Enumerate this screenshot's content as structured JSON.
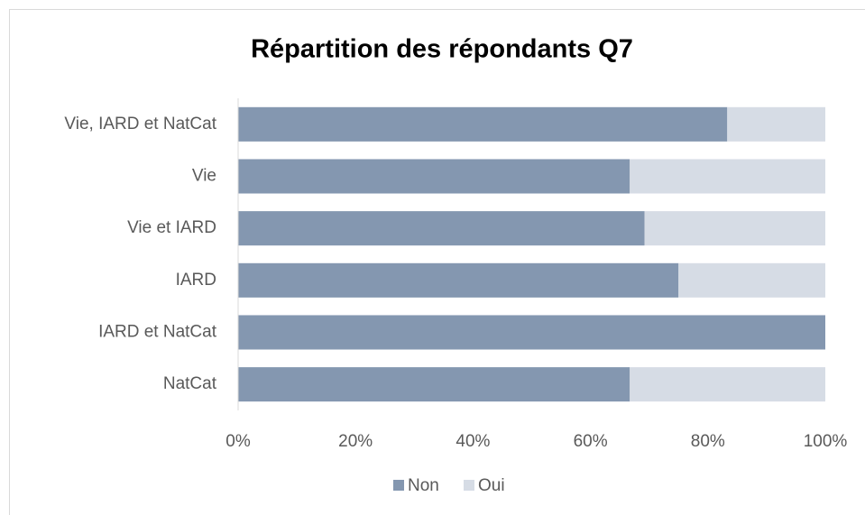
{
  "chart_data": {
    "type": "stacked_barh",
    "title": "Répartition des répondants Q7",
    "categories": [
      "Vie, IARD et NatCat",
      "Vie ",
      "Vie et IARD",
      "IARD",
      "IARD et NatCat",
      "NatCat"
    ],
    "series": [
      {
        "name": "Non",
        "color": "#8497b0",
        "values": [
          83.3,
          66.7,
          69.2,
          75,
          100,
          66.7
        ]
      },
      {
        "name": "Oui",
        "color": "#d6dce5",
        "values": [
          16.7,
          33.3,
          30.8,
          25,
          0,
          33.3
        ]
      }
    ],
    "xlim": [
      0,
      100
    ],
    "xticks": [
      {
        "value": 0,
        "label": "0%"
      },
      {
        "value": 20,
        "label": "20%"
      },
      {
        "value": 40,
        "label": "40%"
      },
      {
        "value": 60,
        "label": "60%"
      },
      {
        "value": 80,
        "label": "80%"
      },
      {
        "value": 100,
        "label": "100%"
      }
    ],
    "legend": "bottom"
  }
}
